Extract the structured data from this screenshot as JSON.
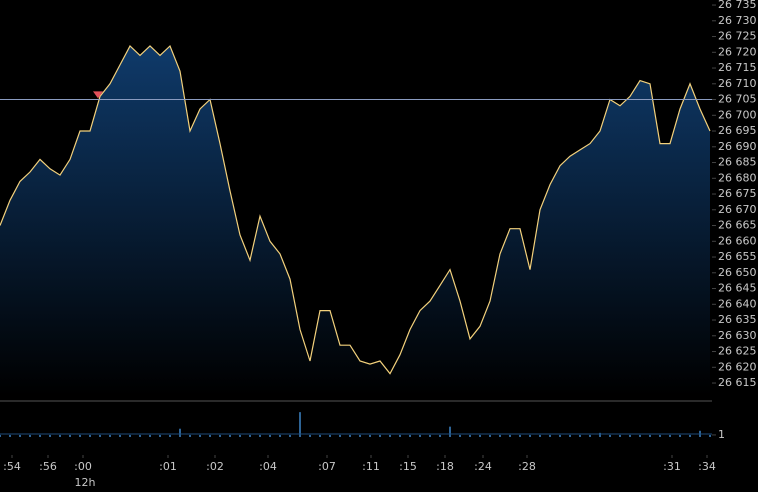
{
  "chart_data": {
    "type": "area",
    "x": [
      0,
      10,
      20,
      30,
      40,
      50,
      60,
      70,
      80,
      90,
      100,
      110,
      120,
      130,
      140,
      150,
      160,
      170,
      180,
      190,
      200,
      210,
      220,
      230,
      240,
      250,
      260,
      270,
      280,
      290,
      300,
      310,
      320,
      330,
      340,
      350,
      360,
      370,
      380,
      390,
      400,
      410,
      420,
      430,
      440,
      450,
      460,
      470,
      480,
      490,
      500,
      510,
      520,
      530,
      540,
      550,
      560,
      570,
      580,
      590,
      600,
      610,
      620,
      630,
      640,
      650,
      660,
      670,
      680,
      690,
      700,
      710
    ],
    "values": [
      26665,
      26673,
      26679,
      26682,
      26686,
      26683,
      26681,
      26686,
      26695,
      26695,
      26706,
      26710,
      26716,
      26722,
      26719,
      26722,
      26719,
      26722,
      26714,
      26695,
      26702,
      26705,
      26691,
      26676,
      26662,
      26654,
      26668,
      26660,
      26656,
      26648,
      26632,
      26622,
      26638,
      26638,
      26627,
      26627,
      26622,
      26621,
      26622,
      26618,
      26624,
      26632,
      26638,
      26641,
      26646,
      26651,
      26641,
      26629,
      26633,
      26641,
      26656,
      26664,
      26664,
      26651,
      26670,
      26678,
      26684,
      26687,
      26689,
      26691,
      26695,
      26705,
      26703,
      26706,
      26711,
      26710,
      26691,
      26691,
      26702,
      26710,
      26702,
      26695
    ],
    "color": "#f3d17c",
    "xlim": [
      0,
      712
    ],
    "ylim": [
      26611.2,
      26736.6
    ],
    "yticks": [
      {
        "value": 26615,
        "label": "26 615"
      },
      {
        "value": 26620,
        "label": "26 620"
      },
      {
        "value": 26625,
        "label": "26 625"
      },
      {
        "value": 26630,
        "label": "26 630"
      },
      {
        "value": 26635,
        "label": "26 635"
      },
      {
        "value": 26640,
        "label": "26 640"
      },
      {
        "value": 26645,
        "label": "26 645"
      },
      {
        "value": 26650,
        "label": "26 650"
      },
      {
        "value": 26655,
        "label": "26 655"
      },
      {
        "value": 26660,
        "label": "26 660"
      },
      {
        "value": 26665,
        "label": "26 665"
      },
      {
        "value": 26670,
        "label": "26 670"
      },
      {
        "value": 26675,
        "label": "26 675"
      },
      {
        "value": 26680,
        "label": "26 680"
      },
      {
        "value": 26685,
        "label": "26 685"
      },
      {
        "value": 26690,
        "label": "26 690"
      },
      {
        "value": 26695,
        "label": "26 695"
      },
      {
        "value": 26700,
        "label": "26 700"
      },
      {
        "value": 26705,
        "label": "26 705"
      },
      {
        "value": 26710,
        "label": "26 710"
      },
      {
        "value": 26715,
        "label": "26 715"
      },
      {
        "value": 26720,
        "label": "26 720"
      },
      {
        "value": 26725,
        "label": "26 725"
      },
      {
        "value": 26730,
        "label": "26 730"
      },
      {
        "value": 26735,
        "label": "26 735"
      }
    ],
    "xticks": [
      {
        "value": 12,
        "label": ":54"
      },
      {
        "value": 48,
        "label": ":56"
      },
      {
        "value": 83,
        "label": ":00"
      },
      {
        "value": 168,
        "label": ":01"
      },
      {
        "value": 215,
        "label": ":02"
      },
      {
        "value": 268,
        "label": ":04"
      },
      {
        "value": 327,
        "label": ":07"
      },
      {
        "value": 371,
        "label": ":11"
      },
      {
        "value": 408,
        "label": ":15"
      },
      {
        "value": 445,
        "label": ":18"
      },
      {
        "value": 483,
        "label": ":24"
      },
      {
        "value": 527,
        "label": ":28"
      },
      {
        "value": 672,
        "label": ":31"
      },
      {
        "value": 707,
        "label": ":34"
      }
    ],
    "session_label": {
      "value": 85,
      "label": "12h"
    },
    "ref_line": 26705,
    "marker": {
      "x": 98,
      "value": 26706,
      "color": "#e0505a"
    },
    "volume": {
      "values": [
        1,
        1,
        1,
        1,
        1,
        1,
        1,
        1,
        1,
        1,
        1,
        1,
        1,
        1,
        1,
        1,
        1,
        1,
        4,
        1,
        1,
        1,
        1,
        1,
        1,
        1,
        1,
        1,
        1,
        1,
        12,
        1,
        1,
        1,
        1,
        1,
        1,
        1,
        1,
        1,
        1,
        1,
        1,
        1,
        1,
        5,
        1,
        1,
        1,
        1,
        1,
        1,
        1,
        1,
        1,
        1,
        1,
        1,
        1,
        1,
        2,
        1,
        1,
        1,
        1,
        1,
        1,
        1,
        1,
        1,
        3,
        1
      ],
      "color": "#3d86c8",
      "ylim": [
        0,
        14
      ],
      "yticks": [
        1
      ]
    }
  }
}
